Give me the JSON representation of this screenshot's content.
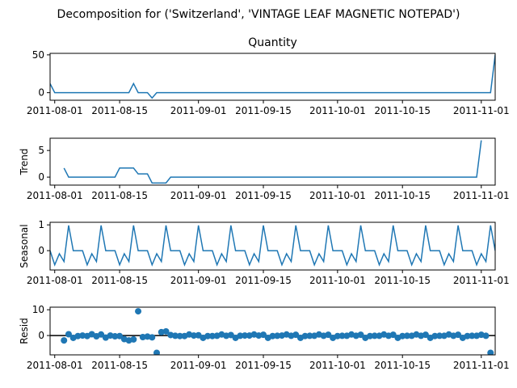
{
  "suptitle": "Decomposition for ('Switzerland', 'VINTAGE LEAF MAGNETIC NOTEPAD')",
  "colors": {
    "line": "#1f77b4",
    "zero_line": "#000000"
  },
  "chart_data": [
    {
      "type": "line",
      "title": "Quantity",
      "ylabel": "",
      "xlim": [
        "2011-07-31",
        "2011-11-04"
      ],
      "ylim": [
        -10,
        52
      ],
      "yticks": [
        0,
        50
      ],
      "xtick_labels": [
        "2011-08-01",
        "2011-08-15",
        "2011-09-01",
        "2011-09-15",
        "2011-10-01",
        "2011-10-15",
        "2011-11-01"
      ],
      "series": [
        {
          "points": [
            [
              "2011-07-31",
              12
            ],
            [
              "2011-08-01",
              0
            ],
            [
              "2011-08-17",
              0
            ],
            [
              "2011-08-18",
              12
            ],
            [
              "2011-08-19",
              0
            ],
            [
              "2011-08-21",
              0
            ],
            [
              "2011-08-22",
              -7
            ],
            [
              "2011-08-23",
              0
            ],
            [
              "2011-11-03",
              0
            ],
            [
              "2011-11-04",
              50
            ]
          ]
        }
      ]
    },
    {
      "type": "line",
      "title": "",
      "ylabel": "Trend",
      "xlim": [
        "2011-07-31",
        "2011-11-04"
      ],
      "ylim": [
        -1.5,
        7.3
      ],
      "yticks": [
        0,
        5
      ],
      "xtick_labels": [
        "2011-08-01",
        "2011-08-15",
        "2011-09-01",
        "2011-09-15",
        "2011-10-01",
        "2011-10-15",
        "2011-11-01"
      ],
      "series": [
        {
          "points": [
            [
              "2011-08-03",
              1.7
            ],
            [
              "2011-08-04",
              0
            ],
            [
              "2011-08-14",
              0
            ],
            [
              "2011-08-15",
              1.7
            ],
            [
              "2011-08-18",
              1.7
            ],
            [
              "2011-08-19",
              0.6
            ],
            [
              "2011-08-21",
              0.6
            ],
            [
              "2011-08-22",
              -1.1
            ],
            [
              "2011-08-25",
              -1.1
            ],
            [
              "2011-08-26",
              0
            ],
            [
              "2011-10-31",
              0
            ],
            [
              "2011-11-01",
              6.9
            ]
          ]
        }
      ]
    },
    {
      "type": "line",
      "title": "",
      "ylabel": "Seasonal",
      "xlim": [
        "2011-07-31",
        "2011-11-04"
      ],
      "ylim": [
        -0.75,
        1.1
      ],
      "yticks": [
        0,
        1
      ],
      "xtick_labels": [
        "2011-08-01",
        "2011-08-15",
        "2011-09-01",
        "2011-09-15",
        "2011-10-01",
        "2011-10-15",
        "2011-11-01"
      ],
      "seasonal_pattern": [
        0,
        -0.55,
        -0.12,
        -0.42,
        0.98,
        0,
        0
      ],
      "start_date": "2011-07-31",
      "end_date": "2011-11-04"
    },
    {
      "type": "scatter",
      "title": "",
      "ylabel": "Resid",
      "xlim": [
        "2011-07-31",
        "2011-11-04"
      ],
      "ylim": [
        -7.5,
        11
      ],
      "yticks": [
        0,
        10
      ],
      "xtick_labels": [
        "2011-08-01",
        "2011-08-15",
        "2011-09-01",
        "2011-09-15",
        "2011-10-01",
        "2011-10-15",
        "2011-11-01"
      ],
      "zero_line": true,
      "series": [
        {
          "points": [
            [
              "2011-08-03",
              -1.9
            ],
            [
              "2011-08-04",
              0.5
            ],
            [
              "2011-08-05",
              -0.9
            ],
            [
              "2011-08-06",
              -0.2
            ],
            [
              "2011-08-07",
              0
            ],
            [
              "2011-08-08",
              -0.2
            ],
            [
              "2011-08-09",
              0.5
            ],
            [
              "2011-08-10",
              -0.3
            ],
            [
              "2011-08-11",
              0.4
            ],
            [
              "2011-08-12",
              -0.8
            ],
            [
              "2011-08-13",
              0
            ],
            [
              "2011-08-14",
              -0.3
            ],
            [
              "2011-08-15",
              -0.2
            ],
            [
              "2011-08-16",
              -1.4
            ],
            [
              "2011-08-17",
              -1.9
            ],
            [
              "2011-08-18",
              -1.5
            ],
            [
              "2011-08-19",
              9.4
            ],
            [
              "2011-08-20",
              -0.6
            ],
            [
              "2011-08-21",
              -0.4
            ],
            [
              "2011-08-22",
              -0.7
            ],
            [
              "2011-08-23",
              -6.7
            ],
            [
              "2011-08-24",
              1.3
            ],
            [
              "2011-08-25",
              1.6
            ],
            [
              "2011-08-26",
              0.2
            ],
            [
              "2011-08-27",
              -0.1
            ],
            [
              "2011-08-28",
              -0.2
            ],
            [
              "2011-08-29",
              -0.2
            ],
            [
              "2011-08-30",
              0.4
            ],
            [
              "2011-08-31",
              0
            ],
            [
              "2011-09-01",
              0.1
            ],
            [
              "2011-09-02",
              -0.9
            ],
            [
              "2011-09-03",
              -0.2
            ],
            [
              "2011-09-04",
              -0.2
            ],
            [
              "2011-09-05",
              -0.1
            ],
            [
              "2011-09-06",
              0.4
            ],
            [
              "2011-09-07",
              -0.1
            ],
            [
              "2011-09-08",
              0.2
            ],
            [
              "2011-09-09",
              -0.9
            ],
            [
              "2011-09-10",
              -0.1
            ],
            [
              "2011-09-11",
              0
            ],
            [
              "2011-09-12",
              0
            ],
            [
              "2011-09-13",
              0.4
            ],
            [
              "2011-09-14",
              0
            ],
            [
              "2011-09-15",
              0.3
            ],
            [
              "2011-09-16",
              -0.9
            ],
            [
              "2011-09-17",
              -0.2
            ],
            [
              "2011-09-18",
              -0.1
            ],
            [
              "2011-09-19",
              0
            ],
            [
              "2011-09-20",
              0.4
            ],
            [
              "2011-09-21",
              -0.1
            ],
            [
              "2011-09-22",
              0.3
            ],
            [
              "2011-09-23",
              -0.9
            ],
            [
              "2011-09-24",
              -0.2
            ],
            [
              "2011-09-25",
              -0.1
            ],
            [
              "2011-09-26",
              -0.1
            ],
            [
              "2011-09-27",
              0.4
            ],
            [
              "2011-09-28",
              -0.1
            ],
            [
              "2011-09-29",
              0.3
            ],
            [
              "2011-09-30",
              -0.9
            ],
            [
              "2011-10-01",
              -0.2
            ],
            [
              "2011-10-02",
              -0.1
            ],
            [
              "2011-10-03",
              -0.1
            ],
            [
              "2011-10-04",
              0.4
            ],
            [
              "2011-10-05",
              -0.1
            ],
            [
              "2011-10-06",
              0.3
            ],
            [
              "2011-10-07",
              -0.9
            ],
            [
              "2011-10-08",
              -0.2
            ],
            [
              "2011-10-09",
              -0.1
            ],
            [
              "2011-10-10",
              -0.1
            ],
            [
              "2011-10-11",
              0.4
            ],
            [
              "2011-10-12",
              -0.1
            ],
            [
              "2011-10-13",
              0.3
            ],
            [
              "2011-10-14",
              -0.9
            ],
            [
              "2011-10-15",
              -0.2
            ],
            [
              "2011-10-16",
              -0.1
            ],
            [
              "2011-10-17",
              -0.1
            ],
            [
              "2011-10-18",
              0.4
            ],
            [
              "2011-10-19",
              -0.1
            ],
            [
              "2011-10-20",
              0.3
            ],
            [
              "2011-10-21",
              -0.9
            ],
            [
              "2011-10-22",
              -0.2
            ],
            [
              "2011-10-23",
              -0.1
            ],
            [
              "2011-10-24",
              -0.1
            ],
            [
              "2011-10-25",
              0.4
            ],
            [
              "2011-10-26",
              -0.1
            ],
            [
              "2011-10-27",
              0.3
            ],
            [
              "2011-10-28",
              -0.9
            ],
            [
              "2011-10-29",
              -0.2
            ],
            [
              "2011-10-30",
              -0.1
            ],
            [
              "2011-10-31",
              -0.1
            ],
            [
              "2011-11-01",
              0.3
            ],
            [
              "2011-11-02",
              -0.1
            ],
            [
              "2011-11-03",
              -6.7
            ]
          ]
        }
      ]
    }
  ]
}
